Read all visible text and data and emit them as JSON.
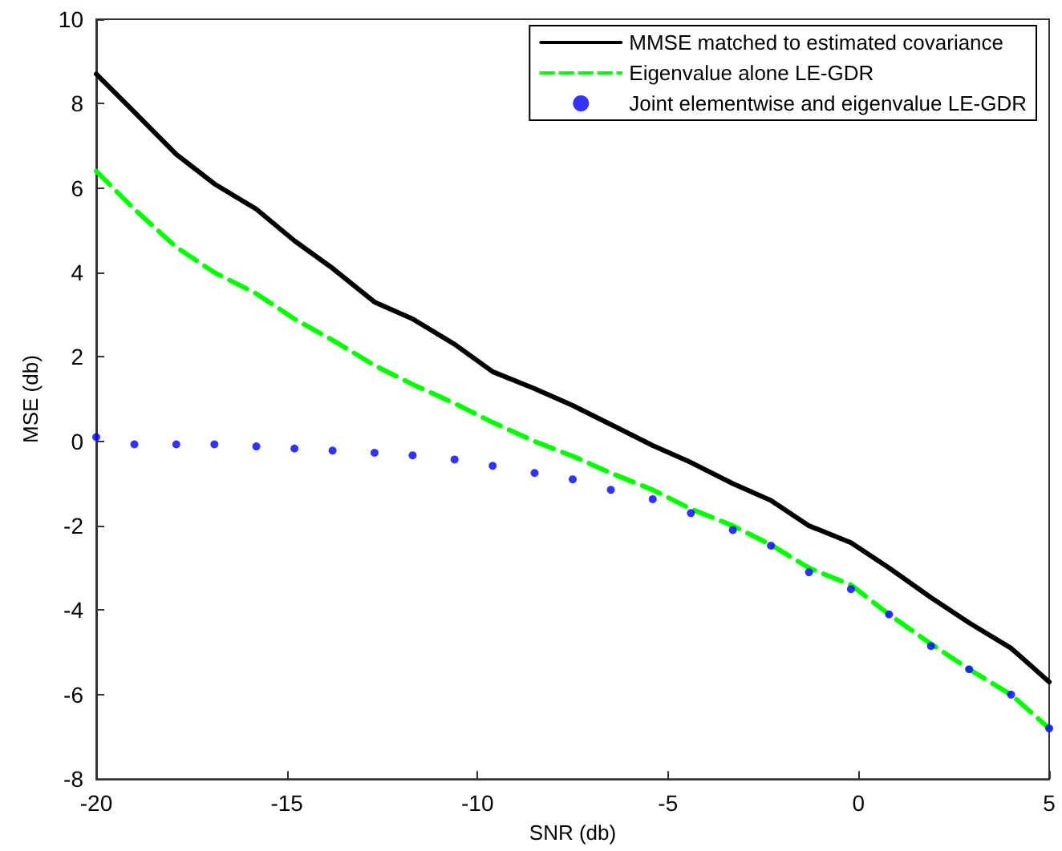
{
  "chart_data": {
    "type": "line",
    "xlabel": "SNR (db)",
    "ylabel": "MSE (db)",
    "x": [
      -20,
      -19,
      -17.9,
      -16.9,
      -15.8,
      -14.8,
      -13.8,
      -12.7,
      -11.7,
      -10.6,
      -9.6,
      -8.5,
      -7.5,
      -6.5,
      -5.4,
      -4.4,
      -3.3,
      -2.3,
      -1.3,
      -0.2,
      0.8,
      1.9,
      2.9,
      4,
      5
    ],
    "series": [
      {
        "name": "MMSE matched to estimated covariance",
        "color": "#000000",
        "line_style": "solid",
        "values": [
          8.7,
          7.8,
          6.8,
          6.1,
          5.5,
          4.75,
          4.1,
          3.3,
          2.9,
          2.3,
          1.65,
          1.25,
          0.85,
          0.4,
          -0.1,
          -0.5,
          -1.0,
          -1.4,
          -2.0,
          -2.4,
          -3.0,
          -3.7,
          -4.3,
          -4.9,
          -5.7
        ]
      },
      {
        "name": "Eigenvalue alone LE-GDR",
        "color": "#00ff00",
        "line_style": "dashed",
        "values": [
          6.4,
          5.5,
          4.6,
          4.0,
          3.5,
          2.9,
          2.4,
          1.8,
          1.35,
          0.9,
          0.45,
          0.0,
          -0.35,
          -0.75,
          -1.15,
          -1.6,
          -2.0,
          -2.45,
          -3.0,
          -3.4,
          -4.1,
          -4.8,
          -5.4,
          -6.0,
          -6.8
        ]
      },
      {
        "name": "Joint elementwise and eigenvalue LE-GDR",
        "color": "#0000ff",
        "type": "scatter",
        "marker": "circle",
        "values": [
          0.1,
          -0.07,
          -0.07,
          -0.07,
          -0.12,
          -0.17,
          -0.22,
          -0.27,
          -0.33,
          -0.43,
          -0.58,
          -0.75,
          -0.9,
          -1.15,
          -1.37,
          -1.7,
          -2.1,
          -2.47,
          -3.1,
          -3.5,
          -4.1,
          -4.85,
          -5.4,
          -6.0,
          -6.8
        ]
      }
    ],
    "xlim": [
      -20,
      5
    ],
    "xticks": [
      -20,
      -15,
      -10,
      -5,
      0,
      5
    ],
    "ylim": [
      -8,
      10
    ],
    "yticks": [
      -8,
      -6,
      -4,
      -2,
      0,
      2,
      4,
      6,
      8,
      10
    ],
    "grid": false,
    "legend": "top right"
  }
}
